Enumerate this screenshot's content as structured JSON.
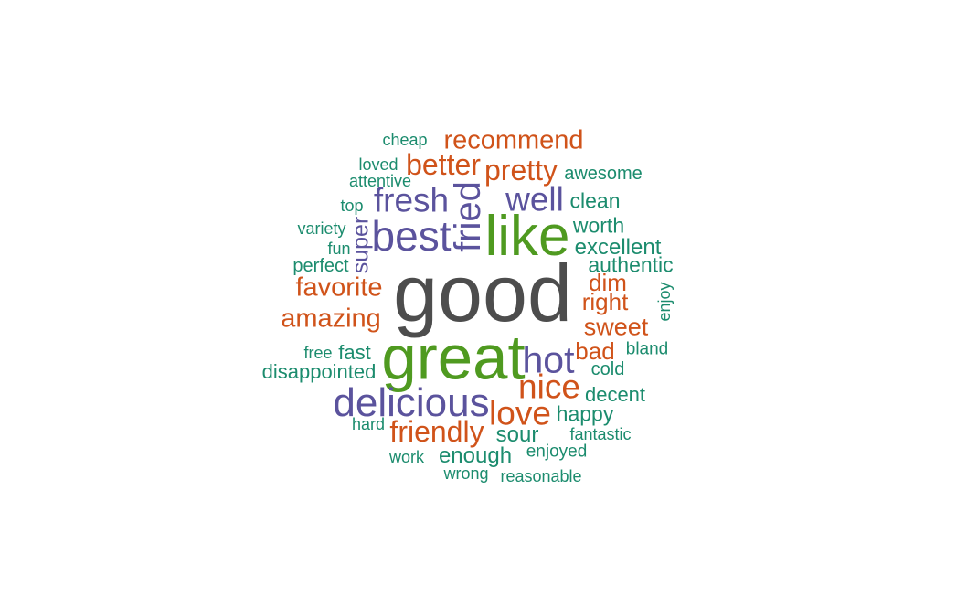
{
  "palette": {
    "dark_gray": "#4d4d4d",
    "green": "#4f9a20",
    "purple": "#5b539d",
    "orange": "#d0531a",
    "teal": "#1c8c6e"
  },
  "words": [
    {
      "text": "good",
      "weight": 1.0,
      "color": "dark_gray"
    },
    {
      "text": "great",
      "weight": 0.78,
      "color": "green"
    },
    {
      "text": "like",
      "weight": 0.7,
      "color": "green"
    },
    {
      "text": "best",
      "weight": 0.52,
      "color": "purple"
    },
    {
      "text": "delicious",
      "weight": 0.5,
      "color": "purple"
    },
    {
      "text": "hot",
      "weight": 0.47,
      "color": "purple"
    },
    {
      "text": "fried",
      "weight": 0.45,
      "color": "purple",
      "vertical": true
    },
    {
      "text": "fresh",
      "weight": 0.42,
      "color": "purple"
    },
    {
      "text": "well",
      "weight": 0.42,
      "color": "purple"
    },
    {
      "text": "love",
      "weight": 0.42,
      "color": "orange"
    },
    {
      "text": "nice",
      "weight": 0.42,
      "color": "orange"
    },
    {
      "text": "better",
      "weight": 0.36,
      "color": "orange"
    },
    {
      "text": "pretty",
      "weight": 0.36,
      "color": "orange"
    },
    {
      "text": "friendly",
      "weight": 0.36,
      "color": "orange"
    },
    {
      "text": "recommend",
      "weight": 0.33,
      "color": "orange"
    },
    {
      "text": "favorite",
      "weight": 0.33,
      "color": "orange"
    },
    {
      "text": "amazing",
      "weight": 0.33,
      "color": "orange"
    },
    {
      "text": "sweet",
      "weight": 0.31,
      "color": "orange"
    },
    {
      "text": "right",
      "weight": 0.3,
      "color": "orange"
    },
    {
      "text": "dim",
      "weight": 0.3,
      "color": "orange"
    },
    {
      "text": "bad",
      "weight": 0.3,
      "color": "orange"
    },
    {
      "text": "super",
      "weight": 0.28,
      "color": "purple",
      "vertical": true
    },
    {
      "text": "excellent",
      "weight": 0.27,
      "color": "teal"
    },
    {
      "text": "enough",
      "weight": 0.27,
      "color": "teal"
    },
    {
      "text": "sour",
      "weight": 0.27,
      "color": "teal"
    },
    {
      "text": "clean",
      "weight": 0.26,
      "color": "teal"
    },
    {
      "text": "worth",
      "weight": 0.26,
      "color": "teal"
    },
    {
      "text": "authentic",
      "weight": 0.26,
      "color": "teal"
    },
    {
      "text": "happy",
      "weight": 0.26,
      "color": "teal"
    },
    {
      "text": "decent",
      "weight": 0.25,
      "color": "teal"
    },
    {
      "text": "fast",
      "weight": 0.25,
      "color": "teal"
    },
    {
      "text": "disappointed",
      "weight": 0.25,
      "color": "teal"
    },
    {
      "text": "awesome",
      "weight": 0.23,
      "color": "teal"
    },
    {
      "text": "cold",
      "weight": 0.23,
      "color": "teal"
    },
    {
      "text": "perfect",
      "weight": 0.23,
      "color": "teal"
    },
    {
      "text": "bland",
      "weight": 0.22,
      "color": "teal"
    },
    {
      "text": "enjoyed",
      "weight": 0.22,
      "color": "teal"
    },
    {
      "text": "loved",
      "weight": 0.21,
      "color": "teal"
    },
    {
      "text": "cheap",
      "weight": 0.21,
      "color": "teal"
    },
    {
      "text": "fantastic",
      "weight": 0.21,
      "color": "teal"
    },
    {
      "text": "enjoy",
      "weight": 0.21,
      "color": "teal",
      "vertical": true
    },
    {
      "text": "fun",
      "weight": 0.21,
      "color": "teal"
    },
    {
      "text": "top",
      "weight": 0.21,
      "color": "teal"
    },
    {
      "text": "attentive",
      "weight": 0.21,
      "color": "teal"
    },
    {
      "text": "variety",
      "weight": 0.2,
      "color": "teal"
    },
    {
      "text": "hard",
      "weight": 0.2,
      "color": "teal"
    },
    {
      "text": "reasonable",
      "weight": 0.2,
      "color": "teal"
    },
    {
      "text": "free",
      "weight": 0.2,
      "color": "teal"
    },
    {
      "text": "work",
      "weight": 0.2,
      "color": "teal"
    },
    {
      "text": "wrong",
      "weight": 0.2,
      "color": "teal"
    }
  ]
}
